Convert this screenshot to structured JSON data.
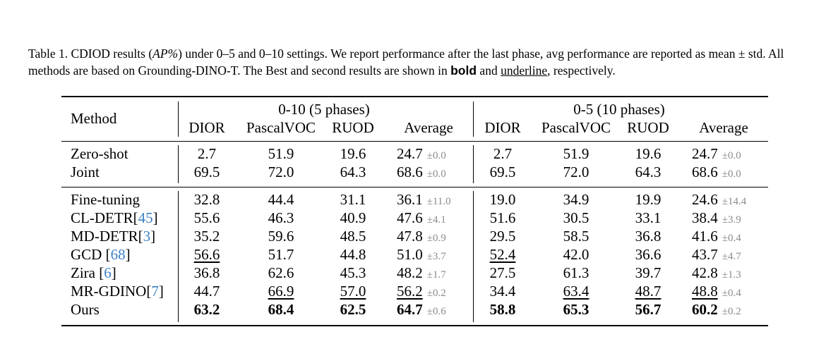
{
  "caption": {
    "prefix": "Table 1. CDIOD results (",
    "metric": "AP%",
    "part2": ") under 0–5 and 0–10 settings. We report performance after the last phase, avg performance are reported as mean ± std. All methods are based on Grounding-DINO-T. The Best and second results are shown in ",
    "bold_word": "bold",
    "and": " and ",
    "underline_word": "underline",
    "suffix": ", respectively."
  },
  "table": {
    "method_header": "Method",
    "group1": "0-10 (5 phases)",
    "group2": "0-5 (10 phases)",
    "cols": [
      "DIOR",
      "PascalVOC",
      "RUOD",
      "Average"
    ],
    "rows": [
      {
        "method": "Zero-shot",
        "cite": "",
        "sep": "",
        "g1": [
          "2.7",
          "51.9",
          "19.6",
          "24.7"
        ],
        "g1_std": "±0.0",
        "g2": [
          "2.7",
          "51.9",
          "19.6",
          "24.7"
        ],
        "g2_std": "±0.0"
      },
      {
        "method": "Joint",
        "cite": "",
        "sep": "",
        "g1": [
          "69.5",
          "72.0",
          "64.3",
          "68.6"
        ],
        "g1_std": "±0.0",
        "g2": [
          "69.5",
          "72.0",
          "64.3",
          "68.6"
        ],
        "g2_std": "±0.0"
      },
      {
        "method": "Fine-tuning",
        "cite": "",
        "sep": "",
        "g1": [
          "32.8",
          "44.4",
          "31.1",
          "36.1"
        ],
        "g1_std": "±11.0",
        "g2": [
          "19.0",
          "34.9",
          "19.9",
          "24.6"
        ],
        "g2_std": "±14.4"
      },
      {
        "method": "CL-DETR",
        "cite": "45",
        "sep": "",
        "g1": [
          "55.6",
          "46.3",
          "40.9",
          "47.6"
        ],
        "g1_std": "±4.1",
        "g2": [
          "51.6",
          "30.5",
          "33.1",
          "38.4"
        ],
        "g2_std": "±3.9"
      },
      {
        "method": "MD-DETR",
        "cite": "3",
        "sep": "",
        "g1": [
          "35.2",
          "59.6",
          "48.5",
          "47.8"
        ],
        "g1_std": "±0.9",
        "g2": [
          "29.5",
          "58.5",
          "36.8",
          "41.6"
        ],
        "g2_std": "±0.4"
      },
      {
        "method": "GCD",
        "cite": "68",
        "sep": " ",
        "g1": [
          "56.6",
          "51.7",
          "44.8",
          "51.0"
        ],
        "g1_std": "±3.7",
        "g2": [
          "52.4",
          "42.0",
          "36.6",
          "43.7"
        ],
        "g2_std": "±4.7"
      },
      {
        "method": "Zira",
        "cite": "6",
        "sep": " ",
        "g1": [
          "36.8",
          "62.6",
          "45.3",
          "48.2"
        ],
        "g1_std": "±1.7",
        "g2": [
          "27.5",
          "61.3",
          "39.7",
          "42.8"
        ],
        "g2_std": "±1.3"
      },
      {
        "method": "MR-GDINO",
        "cite": "7",
        "sep": "",
        "g1": [
          "44.7",
          "66.9",
          "57.0",
          "56.2"
        ],
        "g1_std": "±0.2",
        "g2": [
          "34.4",
          "63.4",
          "48.7",
          "48.8"
        ],
        "g2_std": "±0.4"
      },
      {
        "method": "Ours",
        "cite": "",
        "sep": "",
        "g1": [
          "63.2",
          "68.4",
          "62.5",
          "64.7"
        ],
        "g1_std": "±0.6",
        "g2": [
          "58.8",
          "65.3",
          "56.7",
          "60.2"
        ],
        "g2_std": "±0.2"
      }
    ]
  },
  "cite_color": "#3b7fc4",
  "std_color": "#8a8a8a"
}
